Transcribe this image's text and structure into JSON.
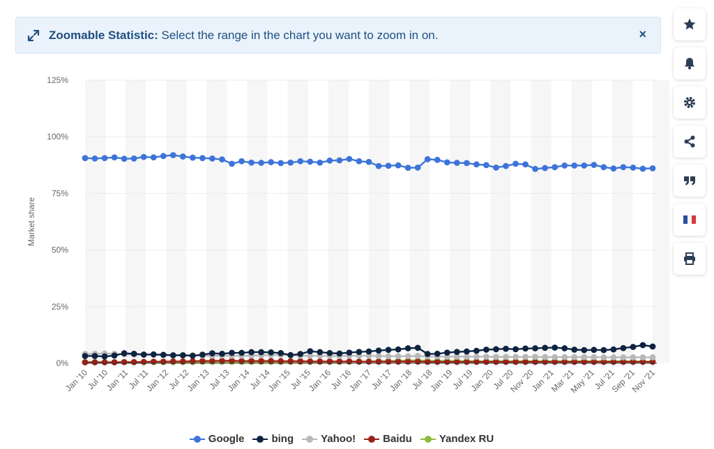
{
  "banner": {
    "title": "Zoomable Statistic:",
    "text": "Select the range in the chart you want to zoom in on.",
    "close": "×"
  },
  "toolbar": [
    {
      "name": "star-icon"
    },
    {
      "name": "bell-icon"
    },
    {
      "name": "gear-icon"
    },
    {
      "name": "share-icon"
    },
    {
      "name": "quote-icon"
    },
    {
      "name": "french-flag-icon"
    },
    {
      "name": "printer-icon"
    }
  ],
  "chart_data": {
    "type": "line",
    "title": "",
    "ylabel": "Market share",
    "ylim": [
      0,
      125
    ],
    "yticks": [
      "0%",
      "25%",
      "50%",
      "75%",
      "100%",
      "125%"
    ],
    "xticks": [
      "Jan '10",
      "Jul '10",
      "Jan '11",
      "Jul '11",
      "Jan '12",
      "Jul '12",
      "Jan '13",
      "Jul '13",
      "Jan '14",
      "Jul '14",
      "Jan '15",
      "Jul '15",
      "Jan '16",
      "Jul '16",
      "Jan '17",
      "Jul '17",
      "Jan '18",
      "Jul '18",
      "Jan '19",
      "Jul '19",
      "Jan '20",
      "Jul '20",
      "Nov '20",
      "Jan '21",
      "Mar '21",
      "May '21",
      "Jul '21",
      "Sep '21",
      "Nov '21"
    ],
    "grid": true,
    "legend_position": "bottom",
    "series": [
      {
        "name": "Google",
        "color": "#3d74d9",
        "values": [
          90.6,
          90.4,
          90.6,
          90.9,
          90.3,
          90.4,
          91.1,
          90.9,
          91.5,
          91.9,
          91.3,
          90.8,
          90.6,
          90.4,
          90.0,
          88.1,
          89.2,
          88.6,
          88.5,
          88.8,
          88.4,
          88.6,
          89.2,
          89.0,
          88.6,
          89.5,
          89.6,
          90.2,
          89.2,
          88.9,
          87.1,
          87.2,
          87.4,
          86.3,
          86.4,
          90.1,
          89.8,
          88.7,
          88.5,
          88.4,
          87.8,
          87.5,
          86.4,
          87.1,
          88.1,
          87.8,
          85.8,
          86.2,
          86.6,
          87.3,
          87.3,
          87.3,
          87.6,
          86.6,
          86.0,
          86.6,
          86.4,
          85.9,
          86.1
        ]
      },
      {
        "name": "bing",
        "color": "#0d2340",
        "values": [
          3.2,
          3.2,
          3.0,
          3.4,
          4.4,
          4.2,
          3.8,
          3.9,
          3.7,
          3.5,
          3.5,
          3.3,
          3.8,
          4.4,
          4.2,
          4.6,
          4.6,
          4.9,
          4.9,
          4.8,
          4.5,
          3.6,
          4.1,
          5.3,
          4.9,
          4.5,
          4.3,
          4.7,
          5.0,
          5.2,
          5.6,
          5.9,
          6.1,
          6.6,
          6.8,
          4.1,
          4.2,
          4.7,
          5.0,
          5.2,
          5.5,
          6.0,
          6.2,
          6.4,
          6.2,
          6.5,
          6.6,
          6.8,
          6.9,
          6.6,
          6.0,
          5.8,
          5.9,
          5.8,
          6.1,
          6.7,
          7.2,
          8.0,
          7.4
        ]
      },
      {
        "name": "Yahoo!",
        "color": "#b8b8b8",
        "values": [
          4.1,
          4.2,
          4.3,
          4.2,
          3.9,
          3.8,
          3.9,
          3.8,
          3.8,
          3.6,
          3.7,
          3.5,
          3.3,
          3.3,
          3.4,
          3.3,
          3.3,
          3.4,
          3.5,
          3.6,
          3.6,
          3.5,
          3.3,
          3.3,
          3.3,
          3.2,
          3.2,
          3.3,
          3.3,
          3.3,
          3.2,
          3.1,
          3.1,
          3.1,
          3.2,
          3.0,
          3.0,
          2.9,
          2.9,
          2.9,
          2.9,
          2.9,
          2.8,
          2.8,
          2.8,
          2.8,
          2.8,
          2.7,
          2.7,
          2.7,
          2.7,
          2.7,
          2.7,
          2.6,
          2.6,
          2.6,
          2.6,
          2.6,
          2.6
        ]
      },
      {
        "name": "Baidu",
        "color": "#9b2218",
        "values": [
          0.4,
          0.4,
          0.4,
          0.4,
          0.5,
          0.5,
          0.6,
          0.7,
          0.7,
          0.8,
          0.8,
          0.9,
          1.0,
          1.0,
          1.1,
          1.1,
          1.0,
          1.0,
          1.0,
          1.0,
          0.9,
          0.9,
          0.9,
          0.8,
          0.8,
          0.8,
          0.8,
          0.8,
          0.7,
          0.7,
          0.7,
          0.7,
          0.7,
          0.7,
          0.7,
          0.6,
          0.6,
          0.6,
          0.6,
          0.6,
          0.6,
          0.6,
          0.6,
          0.6,
          0.6,
          0.6,
          0.6,
          0.6,
          0.6,
          0.6,
          0.6,
          0.6,
          0.6,
          0.6,
          0.6,
          0.6,
          0.6,
          0.6,
          0.6
        ]
      },
      {
        "name": "Yandex RU",
        "color": "#8dbb3d",
        "values": [
          0.5,
          0.5,
          0.5,
          0.5,
          0.5,
          0.5,
          0.5,
          0.5,
          0.5,
          0.5,
          0.5,
          0.5,
          0.6,
          0.6,
          0.6,
          0.6,
          0.6,
          0.6,
          0.6,
          0.6,
          0.6,
          0.6,
          0.6,
          0.6,
          0.6,
          0.6,
          0.6,
          0.7,
          0.7,
          0.8,
          0.9,
          1.0,
          1.1,
          1.2,
          1.2,
          1.1,
          1.1,
          1.0,
          1.0,
          1.0,
          0.9,
          0.9,
          0.9,
          0.9,
          0.9,
          0.9,
          0.9,
          0.9,
          0.9,
          0.9,
          0.9,
          0.9,
          0.9,
          0.9,
          0.9,
          0.9,
          0.9,
          0.8,
          0.8
        ]
      }
    ]
  }
}
